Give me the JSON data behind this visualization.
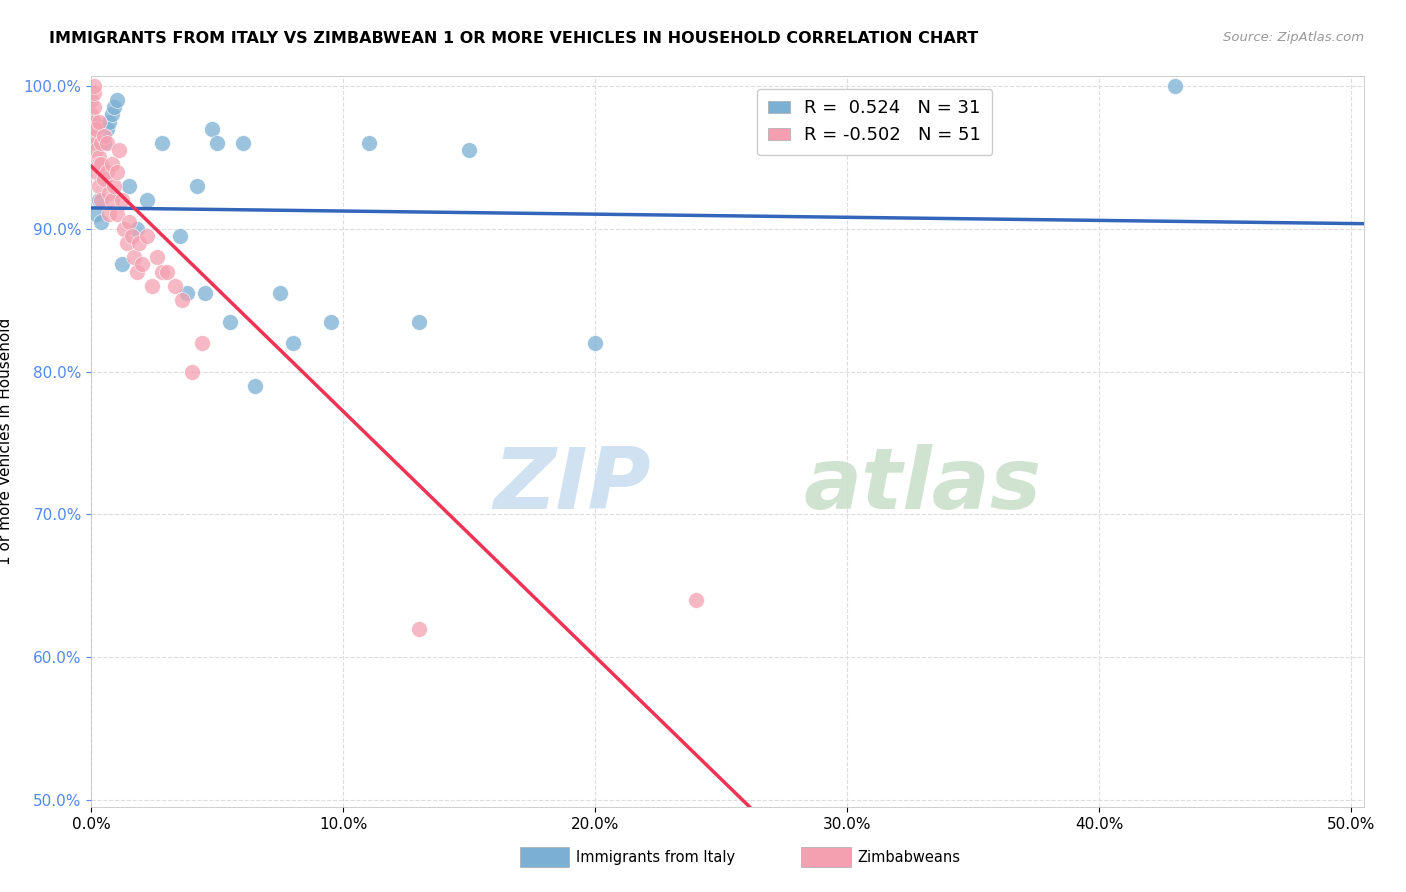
{
  "title": "IMMIGRANTS FROM ITALY VS ZIMBABWEAN 1 OR MORE VEHICLES IN HOUSEHOLD CORRELATION CHART",
  "source": "Source: ZipAtlas.com",
  "ylabel": "1 or more Vehicles in Household",
  "legend_label1": "Immigrants from Italy",
  "legend_label2": "Zimbabweans",
  "R_italy": 0.524,
  "N_italy": 31,
  "R_zimbabwe": -0.502,
  "N_zimbabwe": 51,
  "xlim": [
    0.0,
    0.505
  ],
  "ylim": [
    0.495,
    1.007
  ],
  "xticks": [
    0.0,
    0.1,
    0.2,
    0.3,
    0.4,
    0.5
  ],
  "yticks": [
    0.5,
    0.6,
    0.7,
    0.8,
    0.9,
    1.0
  ],
  "xtick_labels": [
    "0.0%",
    "10.0%",
    "20.0%",
    "30.0%",
    "40.0%",
    "50.0%"
  ],
  "ytick_labels": [
    "50.0%",
    "60.0%",
    "70.0%",
    "80.0%",
    "90.0%",
    "100.0%"
  ],
  "color_italy": "#7BAFD4",
  "color_zimbabwe": "#F4A0B0",
  "color_italy_line": "#3366BB",
  "color_zimbabwe_line": "#EE3355",
  "color_dashed_line": "#BBBBBB",
  "color_grid": "#DDDDDD",
  "italy_x": [
    0.002,
    0.003,
    0.004,
    0.005,
    0.006,
    0.007,
    0.008,
    0.009,
    0.01,
    0.012,
    0.015,
    0.018,
    0.022,
    0.028,
    0.035,
    0.038,
    0.042,
    0.045,
    0.048,
    0.05,
    0.055,
    0.06,
    0.065,
    0.075,
    0.08,
    0.095,
    0.11,
    0.13,
    0.15,
    0.2,
    0.43
  ],
  "italy_y": [
    0.91,
    0.92,
    0.905,
    0.96,
    0.97,
    0.975,
    0.98,
    0.985,
    0.99,
    0.875,
    0.93,
    0.9,
    0.92,
    0.96,
    0.895,
    0.855,
    0.93,
    0.855,
    0.97,
    0.96,
    0.835,
    0.96,
    0.79,
    0.855,
    0.82,
    0.835,
    0.96,
    0.835,
    0.955,
    0.82,
    1.0
  ],
  "zimbabwe_x": [
    0.0,
    0.0,
    0.001,
    0.001,
    0.001,
    0.001,
    0.001,
    0.001,
    0.002,
    0.002,
    0.002,
    0.002,
    0.003,
    0.003,
    0.003,
    0.003,
    0.004,
    0.004,
    0.004,
    0.005,
    0.005,
    0.006,
    0.006,
    0.007,
    0.007,
    0.008,
    0.008,
    0.009,
    0.01,
    0.01,
    0.011,
    0.012,
    0.013,
    0.014,
    0.015,
    0.016,
    0.017,
    0.018,
    0.019,
    0.02,
    0.022,
    0.024,
    0.026,
    0.028,
    0.03,
    0.033,
    0.036,
    0.04,
    0.044,
    0.13,
    0.24
  ],
  "zimbabwe_y": [
    0.98,
    0.99,
    0.975,
    0.985,
    0.995,
    1.0,
    0.97,
    0.965,
    0.96,
    0.97,
    0.955,
    0.94,
    0.975,
    0.95,
    0.93,
    0.945,
    0.96,
    0.945,
    0.92,
    0.965,
    0.935,
    0.94,
    0.96,
    0.925,
    0.91,
    0.945,
    0.92,
    0.93,
    0.94,
    0.91,
    0.955,
    0.92,
    0.9,
    0.89,
    0.905,
    0.895,
    0.88,
    0.87,
    0.89,
    0.875,
    0.895,
    0.86,
    0.88,
    0.87,
    0.87,
    0.86,
    0.85,
    0.8,
    0.82,
    0.62,
    0.64
  ],
  "watermark_zip": "ZIP",
  "watermark_atlas": "atlas",
  "background_color": "#FFFFFF",
  "title_fontsize": 11.5,
  "axis_fontsize": 11,
  "legend_fontsize": 13
}
